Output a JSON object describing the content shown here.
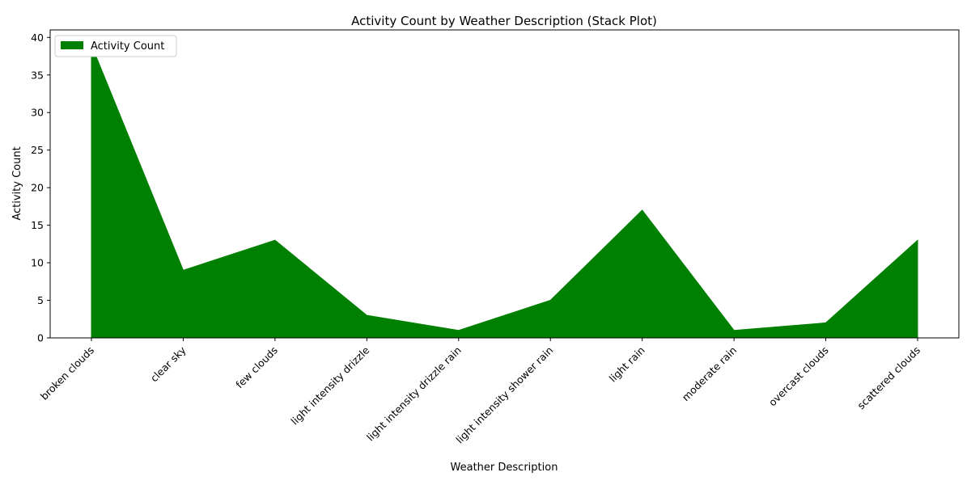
{
  "chart_data": {
    "type": "area",
    "title": "Activity Count by Weather Description (Stack Plot)",
    "xlabel": "Weather Description",
    "ylabel": "Activity Count",
    "categories": [
      "broken clouds",
      "clear sky",
      "few clouds",
      "light intensity drizzle",
      "light intensity drizzle rain",
      "light intensity shower rain",
      "light rain",
      "moderate rain",
      "overcast clouds",
      "scattered clouds"
    ],
    "series": [
      {
        "name": "Activity Count",
        "color": "#008000",
        "values": [
          39,
          9,
          13,
          3,
          1,
          5,
          17,
          1,
          2,
          13
        ]
      }
    ],
    "ylim": [
      0,
      41
    ],
    "yticks": [
      0,
      5,
      10,
      15,
      20,
      25,
      30,
      35,
      40
    ],
    "grid": false,
    "legend": "top-left"
  }
}
